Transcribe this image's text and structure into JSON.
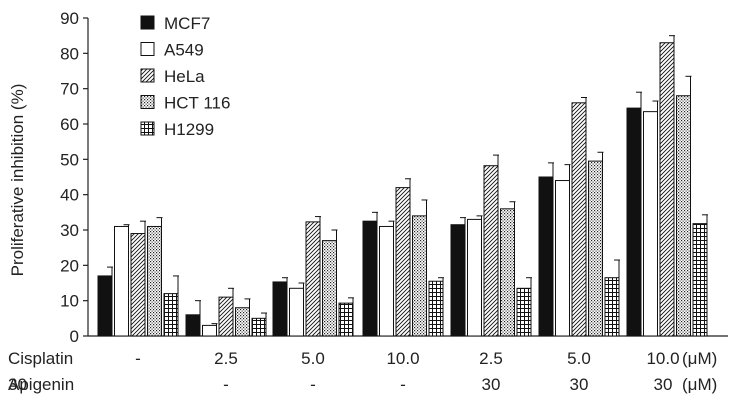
{
  "chart_data": {
    "type": "bar",
    "ylabel": "Proliferative inhibition (%)",
    "ylim": [
      0,
      90
    ],
    "yticks": [
      0,
      10,
      20,
      30,
      40,
      50,
      60,
      70,
      80,
      90
    ],
    "legend_position": "top-left",
    "series": [
      {
        "name": "MCF7",
        "pattern": "solid",
        "values": [
          17,
          6,
          15.3,
          32.5,
          31.5,
          45,
          64.5
        ],
        "errors": [
          2.5,
          4,
          1.2,
          2.5,
          2,
          4,
          4.5
        ]
      },
      {
        "name": "A549",
        "pattern": "open",
        "values": [
          31,
          3,
          13.5,
          31,
          33,
          44,
          63.5
        ],
        "errors": [
          0.5,
          0.5,
          1.5,
          1.5,
          1,
          4.5,
          3
        ]
      },
      {
        "name": "HeLa",
        "pattern": "diagonal",
        "values": [
          29,
          11,
          32.3,
          42,
          48.2,
          66,
          83
        ],
        "errors": [
          3.5,
          2.5,
          1.5,
          2.5,
          3,
          1.5,
          2
        ]
      },
      {
        "name": "HCT 116",
        "pattern": "dotted",
        "values": [
          31,
          8,
          27,
          34,
          36,
          49.5,
          68
        ],
        "errors": [
          2.5,
          2.5,
          3,
          4.5,
          2,
          2.5,
          5.5
        ]
      },
      {
        "name": "H1299",
        "pattern": "crosshatch",
        "values": [
          12,
          5,
          9.3,
          15.5,
          13.5,
          16.5,
          31.8
        ],
        "errors": [
          5,
          1.5,
          1.5,
          1,
          3,
          5,
          2.5
        ]
      }
    ],
    "rows": [
      {
        "label": "Cisplatin",
        "values": [
          "-",
          "2.5",
          "5.0",
          "10.0",
          "2.5",
          "5.0",
          "10.0"
        ],
        "unit": "(μM)"
      },
      {
        "label": "Apigenin",
        "values": [
          "30",
          "-",
          "-",
          "-",
          "30",
          "30",
          "30"
        ],
        "unit": "(μM)"
      }
    ]
  }
}
